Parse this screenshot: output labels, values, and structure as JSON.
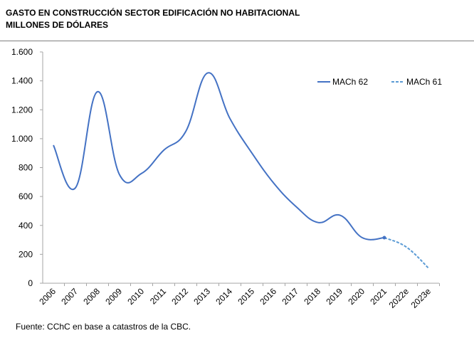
{
  "header": {
    "title_line1": "GASTO EN CONSTRUCCIÓN SECTOR EDIFICACIÓN NO HABITACIONAL",
    "title_line2": "MILLONES DE DÓLARES"
  },
  "footer": {
    "source": "Fuente: CChC en base a catastros de la CBC."
  },
  "chart_data": {
    "type": "line",
    "categories": [
      "2006",
      "2007",
      "2008",
      "2009",
      "2010",
      "2011",
      "2012",
      "2013",
      "2014",
      "2015",
      "2016",
      "2017",
      "2018",
      "2019",
      "2020",
      "2021",
      "2022e",
      "2023e"
    ],
    "ylim": [
      0,
      1600
    ],
    "yticks": [
      0,
      200,
      400,
      600,
      800,
      1000,
      1200,
      1400,
      1600
    ],
    "ytick_labels": [
      "0",
      "200",
      "400",
      "600",
      "800",
      "1.000",
      "1.200",
      "1.400",
      "1.600"
    ],
    "grid": false,
    "legend_position": "top-right",
    "series": [
      {
        "name": "MACh 62",
        "color": "#4472c4",
        "dash": "solid",
        "values": [
          955,
          660,
          1325,
          750,
          760,
          920,
          1050,
          1455,
          1140,
          900,
          690,
          530,
          420,
          470,
          315,
          315,
          null,
          null
        ]
      },
      {
        "name": "MACh 61",
        "color": "#5b9bd5",
        "dash": "dashed",
        "values": [
          null,
          null,
          null,
          null,
          null,
          null,
          null,
          null,
          null,
          null,
          null,
          null,
          null,
          null,
          null,
          315,
          250,
          105
        ]
      }
    ]
  }
}
